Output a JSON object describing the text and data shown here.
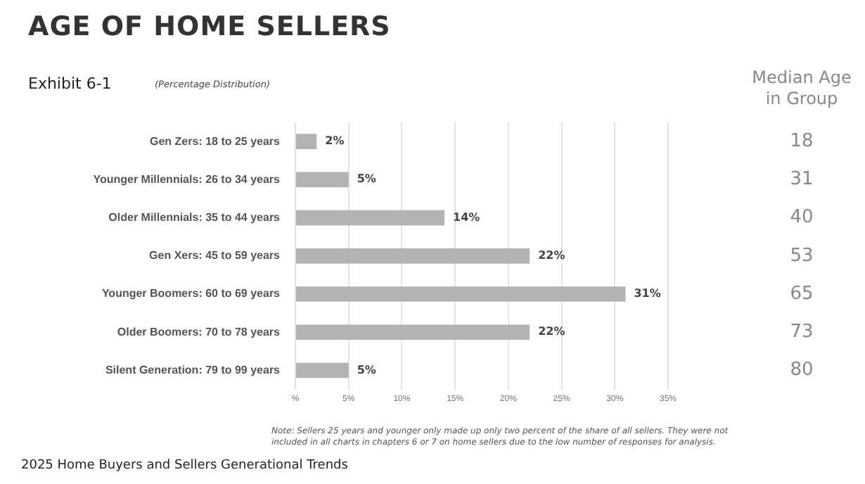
{
  "chart_data": {
    "type": "bar",
    "orientation": "horizontal",
    "title": "AGE OF HOME SELLERS",
    "subtitle": "Exhibit 6-1",
    "categories": [
      "Gen Zers: 18 to 25 years",
      "Younger Millennials: 26 to 34 years",
      "Older Millennials: 35 to 44 years",
      "Gen Xers: 45 to 59 years",
      "Younger Boomers: 60 to 69 years",
      "Older Boomers: 70 to 78 years",
      "Silent Generation: 79 to 99 years"
    ],
    "values": [
      2,
      5,
      14,
      22,
      31,
      22,
      5
    ],
    "value_labels": [
      "2%",
      "5%",
      "14%",
      "22%",
      "31%",
      "22%",
      "5%"
    ],
    "color": "#b3b3b3",
    "xlim": [
      0,
      35
    ],
    "xticks": [
      {
        "value": 0,
        "label": "%"
      },
      {
        "value": 5,
        "label": "5%"
      },
      {
        "value": 10,
        "label": "10%"
      },
      {
        "value": 15,
        "label": "15%"
      },
      {
        "value": 20,
        "label": "20%"
      },
      {
        "value": 25,
        "label": "25%"
      },
      {
        "value": 30,
        "label": "30%"
      },
      {
        "value": 35,
        "label": "35%"
      }
    ],
    "y2label": "Median Age in Group",
    "y2_categories": [
      "18",
      "31",
      "40",
      "53",
      "65",
      "73",
      "80"
    ],
    "grid": "x",
    "legend": false,
    "annotations": [
      "(Percentage Distribution)",
      "Note: Sellers 25 years and younger only made up only two percent of the share of all sellers. They were not included in all charts in chapters 6 or 7 on home sellers due to the low number of responses for analysis.",
      "2025 Home Buyers and Sellers Generational Trends"
    ]
  }
}
